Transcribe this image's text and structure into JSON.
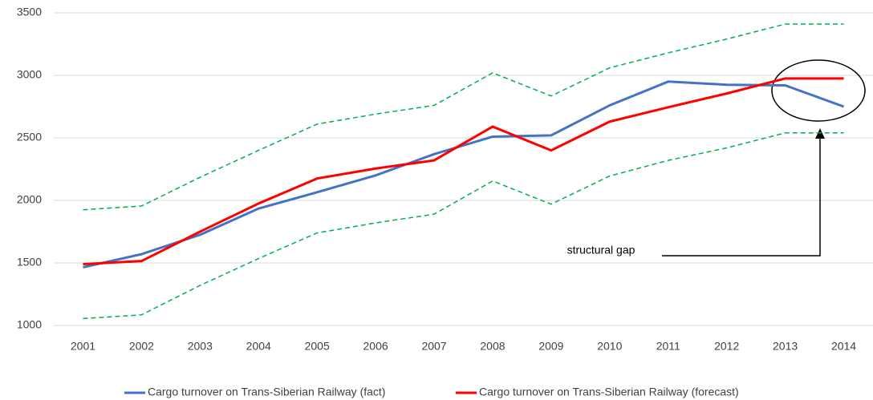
{
  "chart_data": {
    "type": "line",
    "categories": [
      "2001",
      "2002",
      "2003",
      "2004",
      "2005",
      "2006",
      "2007",
      "2008",
      "2009",
      "2010",
      "2011",
      "2012",
      "2013",
      "2014"
    ],
    "series": [
      {
        "color": "#00b050",
        "dashed": true,
        "values": [
          1925,
          1955,
          2185,
          2400,
          2610,
          2690,
          2760,
          3020,
          2835,
          3060,
          3180,
          3290,
          3410,
          3410
        ]
      },
      {
        "color": "#00b050",
        "dashed": true,
        "values": [
          1055,
          1085,
          1320,
          1535,
          1740,
          1820,
          1890,
          2155,
          1970,
          2195,
          2320,
          2420,
          2540,
          2540
        ]
      },
      {
        "name": "Cargo turnover on Trans-Siberian Railway (fact)",
        "color": "#4472c4",
        "values": [
          1465,
          1570,
          1725,
          1935,
          2065,
          2200,
          2370,
          2510,
          2520,
          2760,
          2950,
          2925,
          2920,
          2750
        ]
      },
      {
        "name": "Cargo turnover on Trans-Siberian Railway (forecast)",
        "color": "#ff0000",
        "values": [
          1490,
          1515,
          1750,
          1975,
          2175,
          2255,
          2320,
          2590,
          2400,
          2630,
          2745,
          2855,
          2975,
          2975
        ]
      }
    ],
    "annotation": "structural gap",
    "ylim": [
      1000,
      3500
    ],
    "yticks": [
      1000,
      1500,
      2000,
      2500,
      3000,
      3500
    ],
    "grid": true,
    "legend": "bottom"
  }
}
